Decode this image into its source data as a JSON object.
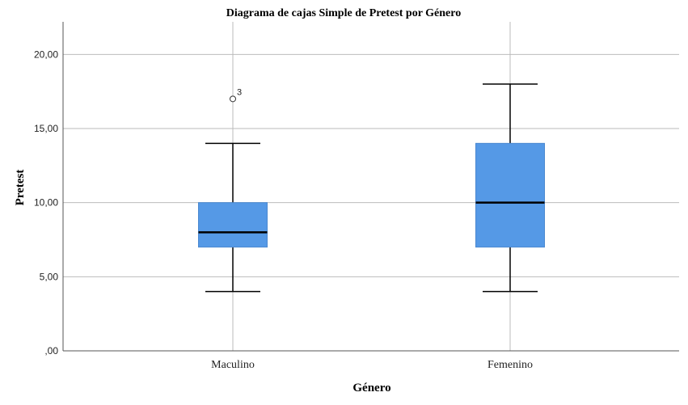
{
  "chart_data": {
    "type": "boxplot",
    "title": "Diagrama de cajas Simple de Pretest por Género",
    "xlabel": "Género",
    "ylabel": "Pretest",
    "ylim": [
      0,
      22.2
    ],
    "yticks": [
      0,
      5,
      10,
      15,
      20
    ],
    "ytick_labels": [
      ",00",
      "5,00",
      "10,00",
      "15,00",
      "20,00"
    ],
    "grid": true,
    "box_color": "#5599e6",
    "categories": [
      "Maculino",
      "Femenino"
    ],
    "series": [
      {
        "name": "Maculino",
        "min": 4,
        "q1": 7,
        "median": 8,
        "q3": 10,
        "max": 14,
        "outliers": [
          {
            "value": 17,
            "label": "3"
          }
        ]
      },
      {
        "name": "Femenino",
        "min": 4,
        "q1": 7,
        "median": 10,
        "q3": 14,
        "max": 18,
        "outliers": []
      }
    ]
  }
}
